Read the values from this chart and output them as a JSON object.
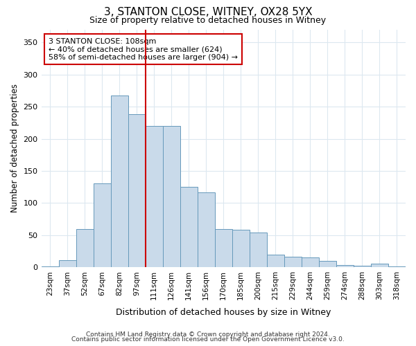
{
  "title1": "3, STANTON CLOSE, WITNEY, OX28 5YX",
  "title2": "Size of property relative to detached houses in Witney",
  "xlabel": "Distribution of detached houses by size in Witney",
  "ylabel": "Number of detached properties",
  "categories": [
    "23sqm",
    "37sqm",
    "52sqm",
    "67sqm",
    "82sqm",
    "97sqm",
    "111sqm",
    "126sqm",
    "141sqm",
    "156sqm",
    "170sqm",
    "185sqm",
    "200sqm",
    "215sqm",
    "229sqm",
    "244sqm",
    "259sqm",
    "274sqm",
    "288sqm",
    "303sqm",
    "318sqm"
  ],
  "values": [
    2,
    11,
    60,
    131,
    267,
    238,
    220,
    220,
    125,
    117,
    60,
    58,
    54,
    20,
    17,
    15,
    10,
    4,
    3,
    6,
    2
  ],
  "bar_color": "#c9daea",
  "bar_edge_color": "#6699bb",
  "vline_x_index": 6,
  "vline_color": "#cc0000",
  "annotation_text": "3 STANTON CLOSE: 108sqm\n← 40% of detached houses are smaller (624)\n58% of semi-detached houses are larger (904) →",
  "annotation_box_color": "#ffffff",
  "annotation_box_edge": "#cc0000",
  "ylim": [
    0,
    370
  ],
  "yticks": [
    0,
    50,
    100,
    150,
    200,
    250,
    300,
    350
  ],
  "footer1": "Contains HM Land Registry data © Crown copyright and database right 2024.",
  "footer2": "Contains public sector information licensed under the Open Government Licence v3.0.",
  "background_color": "#ffffff",
  "grid_color": "#dce8f0",
  "title1_fontsize": 11,
  "title2_fontsize": 9
}
